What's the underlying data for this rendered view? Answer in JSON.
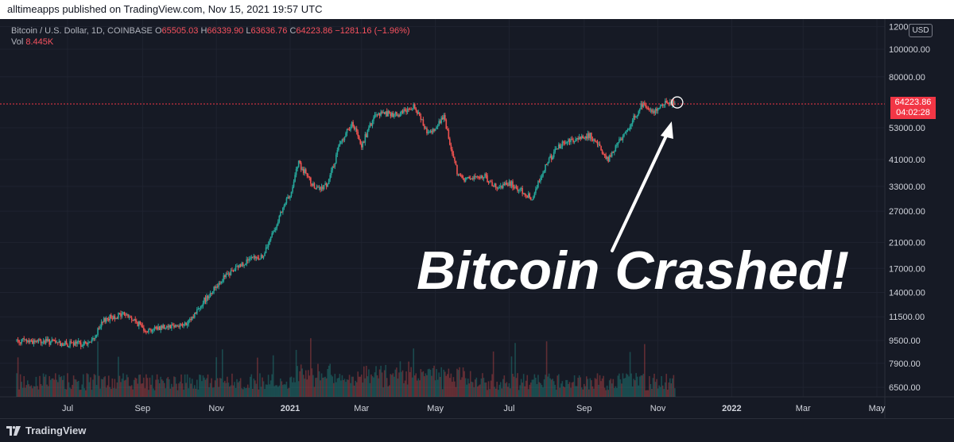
{
  "header": {
    "publisher_line": "alltimeapps published on TradingView.com, Nov 15, 2021 19:57 UTC"
  },
  "legend": {
    "symbol": "Bitcoin / U.S. Dollar, 1D, COINBASE",
    "open_label": "O",
    "open": "65505.03",
    "high_label": "H",
    "high": "66339.90",
    "low_label": "L",
    "low": "63636.76",
    "close_label": "C",
    "close": "64223.86",
    "change": "−1281.16 (−1.96%)",
    "vol_label": "Vol",
    "vol": "8.445K"
  },
  "price_scale": {
    "currency": "USD",
    "last_price": "64223.86",
    "countdown": "04:02:28",
    "tick_labels": [
      "120000.00",
      "100000.00",
      "80000.00",
      "53000.00",
      "41000.00",
      "33000.00",
      "27000.00",
      "21000.00",
      "17000.00",
      "14000.00",
      "11500.00",
      "9500.00",
      "7900.00",
      "6500.00"
    ]
  },
  "annotation": {
    "text": "Bitcoin Crashed!"
  },
  "footer": {
    "brand": "TradingView"
  },
  "colors": {
    "up": "#26a69a",
    "down": "#ef5350",
    "price_line": "#f23645",
    "background": "#161a25",
    "grid": "#1f2330",
    "arrow": "#ffffff"
  },
  "chart_data": {
    "type": "candlestick",
    "title": "",
    "xlabel": "",
    "ylabel": "",
    "y_scale": "log",
    "ylim": [
      6000,
      125000
    ],
    "x_tick_labels": [
      "Jul",
      "Sep",
      "Nov",
      "2021",
      "Mar",
      "May",
      "Jul",
      "Sep",
      "Nov",
      "2022",
      "Mar",
      "May"
    ],
    "x_ticks": [
      "2020-07-01",
      "2020-09-01",
      "2020-11-01",
      "2021-01-01",
      "2021-03-01",
      "2021-05-01",
      "2021-07-01",
      "2021-09-01",
      "2021-11-01",
      "2022-01-01",
      "2022-03-01",
      "2022-05-01"
    ],
    "y_tick_values": [
      120000,
      100000,
      80000,
      53000,
      41000,
      33000,
      27000,
      21000,
      17000,
      14000,
      11500,
      9500,
      7900,
      6500
    ],
    "last_price": 64223.86,
    "series": [
      {
        "name": "",
        "type": "close",
        "dates": [
          "2020-05-20",
          "2020-06-15",
          "2020-07-01",
          "2020-07-20",
          "2020-08-01",
          "2020-08-17",
          "2020-09-05",
          "2020-09-20",
          "2020-10-08",
          "2020-10-21",
          "2020-11-05",
          "2020-11-25",
          "2020-12-10",
          "2020-12-20",
          "2021-01-02",
          "2021-01-08",
          "2021-01-22",
          "2021-02-01",
          "2021-02-10",
          "2021-02-21",
          "2021-03-01",
          "2021-03-13",
          "2021-04-01",
          "2021-04-14",
          "2021-04-25",
          "2021-05-08",
          "2021-05-19",
          "2021-05-23",
          "2021-06-10",
          "2021-06-22",
          "2021-07-01",
          "2021-07-20",
          "2021-08-01",
          "2021-08-14",
          "2021-09-06",
          "2021-09-21",
          "2021-10-01",
          "2021-10-20",
          "2021-10-28",
          "2021-11-08",
          "2021-11-15"
        ],
        "close": [
          9500,
          9400,
          9200,
          9300,
          11300,
          11800,
          10300,
          10700,
          10800,
          13000,
          15500,
          18000,
          18800,
          24000,
          32000,
          40000,
          32000,
          33500,
          45000,
          55000,
          46000,
          60000,
          59000,
          63500,
          50000,
          58000,
          37000,
          35000,
          36000,
          32000,
          34000,
          30000,
          40000,
          47000,
          50000,
          41000,
          48000,
          65000,
          60000,
          66000,
          64223.86
        ]
      }
    ],
    "annotations": [
      {
        "type": "text",
        "text": "Bitcoin Crashed!"
      },
      {
        "type": "arrow",
        "target_date": "2021-11-15",
        "target_value": 64223.86
      },
      {
        "type": "circle",
        "target_date": "2021-11-15",
        "target_value": 64223.86
      }
    ]
  }
}
